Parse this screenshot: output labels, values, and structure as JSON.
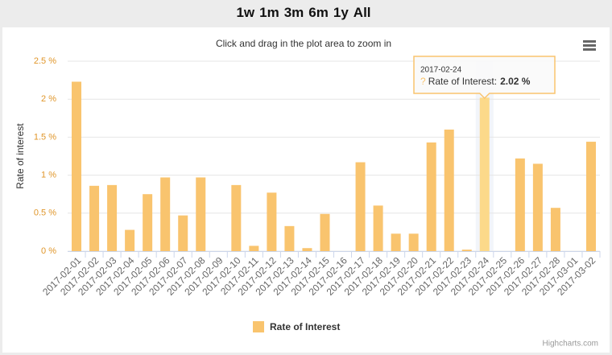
{
  "range_buttons": [
    "1w",
    "1m",
    "3m",
    "6m",
    "1y",
    "All"
  ],
  "chart_data": {
    "type": "bar",
    "subtitle": "Click and drag in the plot area to zoom in",
    "y_label": "Rate of interest",
    "categories": [
      "2017-02-01",
      "2017-02-02",
      "2017-02-03",
      "2017-02-04",
      "2017-02-05",
      "2017-02-06",
      "2017-02-07",
      "2017-02-08",
      "2017-02-09",
      "2017-02-10",
      "2017-02-11",
      "2017-02-12",
      "2017-02-13",
      "2017-02-14",
      "2017-02-15",
      "2017-02-16",
      "2017-02-17",
      "2017-02-18",
      "2017-02-19",
      "2017-02-20",
      "2017-02-21",
      "2017-02-22",
      "2017-02-23",
      "2017-02-24",
      "2017-02-25",
      "2017-02-26",
      "2017-02-27",
      "2017-02-28",
      "2017-03-01",
      "2017-03-02"
    ],
    "series": [
      {
        "name": "Rate of Interest",
        "color": "#f9c46e",
        "values": [
          2.23,
          0.86,
          0.87,
          0.28,
          0.75,
          0.97,
          0.47,
          0.97,
          0,
          0.87,
          0.07,
          0.77,
          0.33,
          0.04,
          0.49,
          0,
          1.17,
          0.6,
          0.23,
          0.23,
          1.43,
          1.6,
          0.02,
          2.02,
          0,
          1.22,
          1.15,
          0.57,
          0,
          1.44
        ]
      }
    ],
    "ylim": [
      0,
      2.5
    ],
    "yticks": [
      {
        "value": 0,
        "label": "0 %"
      },
      {
        "value": 0.5,
        "label": "0.5 %"
      },
      {
        "value": 1,
        "label": "1 %"
      },
      {
        "value": 1.5,
        "label": "1.5 %"
      },
      {
        "value": 2,
        "label": "2 %"
      },
      {
        "value": 2.5,
        "label": "2.5 %"
      }
    ],
    "grid": true,
    "tooltip": {
      "title": "2017-02-24",
      "marker": "?",
      "label": "Rate of Interest:",
      "value": "2.02 %"
    },
    "credits": "Highcharts.com"
  }
}
